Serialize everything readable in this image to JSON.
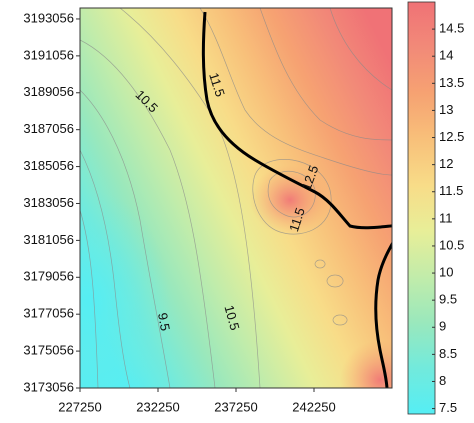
{
  "chart_data": {
    "type": "contour",
    "xlim": [
      227250,
      247250
    ],
    "xticks": [
      227250,
      232250,
      237250,
      242250
    ],
    "ylim": [
      3173056,
      3193650
    ],
    "yticks": [
      3173056,
      3175056,
      3177056,
      3179056,
      3181056,
      3183056,
      3185056,
      3187056,
      3189056,
      3191056,
      3193056
    ],
    "contour_labels": [
      10.5,
      11.5,
      12.5,
      11.5,
      9.5,
      10.5
    ],
    "colorbar": {
      "lim": [
        7.4,
        15
      ],
      "ticks": [
        7.5,
        8,
        8.5,
        9,
        9.5,
        10,
        10.5,
        11,
        11.5,
        12,
        12.5,
        13,
        13.5,
        14,
        14.5
      ],
      "colormap": [
        "#55eef4",
        "#72eadc",
        "#9ae8bc",
        "#c2ecaa",
        "#e8ee98",
        "#f8dc88",
        "#f8c07a",
        "#f6a272",
        "#f28a78",
        "#f07276"
      ]
    }
  }
}
